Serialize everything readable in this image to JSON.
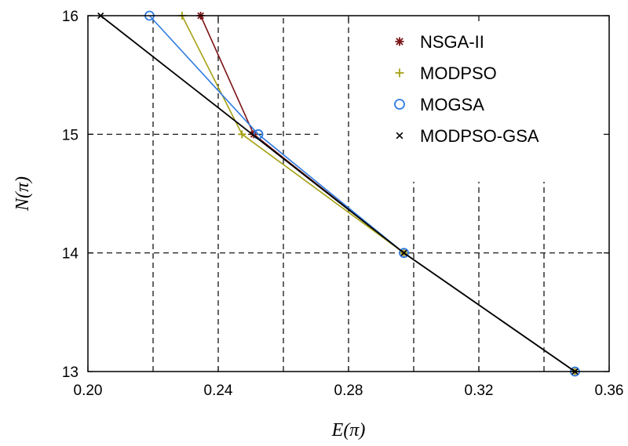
{
  "chart_data": {
    "type": "line",
    "xlabel": "E(π)",
    "ylabel": "N(π)",
    "xlim": [
      0.2,
      0.36
    ],
    "ylim": [
      13,
      16
    ],
    "xticks": [
      "0.20",
      "0.24",
      "0.28",
      "0.32",
      "0.36"
    ],
    "xtick_values": [
      0.2,
      0.24,
      0.28,
      0.32,
      0.36
    ],
    "yticks": [
      "13",
      "14",
      "15",
      "16"
    ],
    "ytick_values": [
      13,
      14,
      15,
      16
    ],
    "grid": "dashed",
    "legend_position": "top-right",
    "series": [
      {
        "name": "NSGA-II",
        "color": "#7b1416",
        "marker": "star",
        "points": [
          [
            0.2346,
            16
          ],
          [
            0.2509,
            15
          ],
          [
            0.297,
            14
          ],
          [
            0.3495,
            13
          ]
        ]
      },
      {
        "name": "MODPSO",
        "color": "#a4a013",
        "marker": "plus",
        "points": [
          [
            0.2289,
            16
          ],
          [
            0.2473,
            15
          ],
          [
            0.297,
            14
          ],
          [
            0.3495,
            13
          ]
        ]
      },
      {
        "name": "MOGSA",
        "color": "#2f7be0",
        "marker": "circle",
        "points": [
          [
            0.2189,
            16
          ],
          [
            0.2523,
            15
          ],
          [
            0.297,
            14
          ],
          [
            0.3495,
            13
          ]
        ]
      },
      {
        "name": "MODPSO-GSA",
        "color": "#000000",
        "marker": "x",
        "points": [
          [
            0.2039,
            16
          ],
          [
            0.297,
            14
          ],
          [
            0.3495,
            13
          ]
        ]
      }
    ],
    "grid_segments": {
      "vertical": [
        {
          "x": 0.22,
          "y": [
            13,
            16
          ]
        },
        {
          "x": 0.24,
          "y": [
            13,
            16
          ]
        },
        {
          "x": 0.26,
          "y": [
            13,
            16
          ]
        },
        {
          "x": 0.28,
          "y": [
            13,
            16
          ]
        },
        {
          "x": 0.3,
          "y": [
            13,
            14.6
          ]
        },
        {
          "x": 0.32,
          "y": [
            13,
            14.6
          ]
        },
        {
          "x": 0.34,
          "y": [
            13,
            14.6
          ]
        }
      ],
      "horizontal": [
        {
          "y": 15,
          "x": [
            0.2,
            0.2707
          ]
        },
        {
          "y": 14,
          "x": [
            0.2,
            0.36
          ]
        }
      ]
    }
  }
}
